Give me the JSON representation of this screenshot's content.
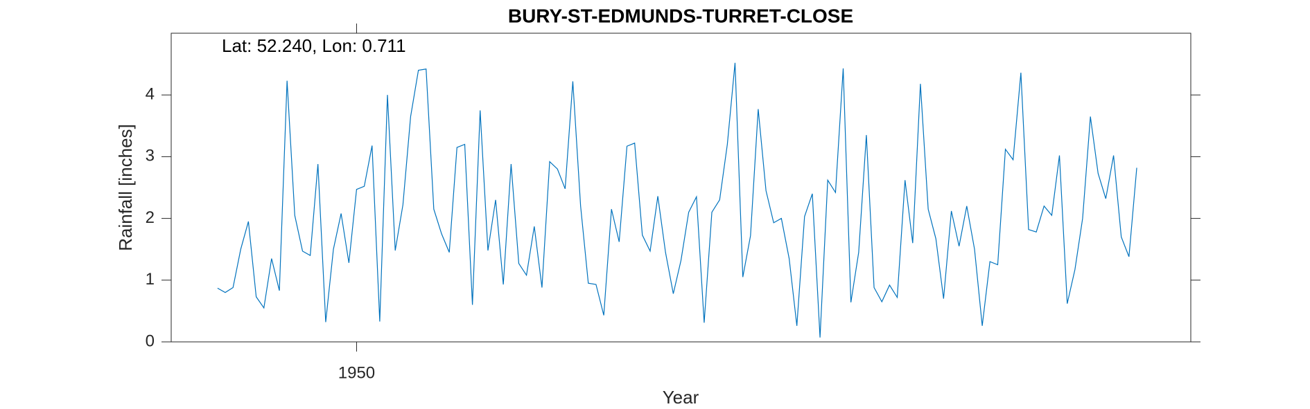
{
  "chart_data": {
    "type": "line",
    "title": "BURY-ST-EDMUNDS-TURRET-CLOSE",
    "annotation": "Lat: 52.240, Lon: 0.711",
    "x_label": "Year",
    "y_label": "Rainfall [inches]",
    "xlim": [
      1948,
      1959
    ],
    "xticks": [
      1950
    ],
    "ylim": [
      0,
      5
    ],
    "yticks": [
      0,
      1,
      2,
      3,
      4
    ],
    "grid": false,
    "x": [
      1948.5,
      1948.583,
      1948.667,
      1948.75,
      1948.833,
      1948.917,
      1949,
      1949.083,
      1949.167,
      1949.25,
      1949.333,
      1949.417,
      1949.5,
      1949.583,
      1949.667,
      1949.75,
      1949.833,
      1949.917,
      1950,
      1950.083,
      1950.167,
      1950.25,
      1950.333,
      1950.417,
      1950.5,
      1950.583,
      1950.667,
      1950.75,
      1950.833,
      1950.917,
      1951,
      1951.083,
      1951.167,
      1951.25,
      1951.333,
      1951.417,
      1951.5,
      1951.583,
      1951.667,
      1951.75,
      1951.833,
      1951.917,
      1952,
      1952.083,
      1952.167,
      1952.25,
      1952.333,
      1952.417,
      1952.5,
      1952.583,
      1952.667,
      1952.75,
      1952.833,
      1952.917,
      1953,
      1953.083,
      1953.167,
      1953.25,
      1953.333,
      1953.417,
      1953.5,
      1953.583,
      1953.667,
      1953.75,
      1953.833,
      1953.917,
      1954,
      1954.083,
      1954.167,
      1954.25,
      1954.333,
      1954.417,
      1954.5,
      1954.583,
      1954.667,
      1954.75,
      1954.833,
      1954.917,
      1955,
      1955.083,
      1955.167,
      1955.25,
      1955.333,
      1955.417,
      1955.5,
      1955.583,
      1955.667,
      1955.75,
      1955.833,
      1955.917,
      1956,
      1956.083,
      1956.167,
      1956.25,
      1956.333,
      1956.417,
      1956.5,
      1956.583,
      1956.667,
      1956.75,
      1956.833,
      1956.917,
      1957,
      1957.083,
      1957.167,
      1957.25,
      1957.333,
      1957.417,
      1957.5,
      1957.583,
      1957.667,
      1957.75,
      1957.833,
      1957.917,
      1958,
      1958.083,
      1958.167,
      1958.25,
      1958.333,
      1958.417
    ],
    "series": [
      {
        "color": "#0072bd",
        "values": [
          0.87,
          0.8,
          0.88,
          1.5,
          1.95,
          0.73,
          0.55,
          1.35,
          0.83,
          4.23,
          2.05,
          1.47,
          1.4,
          2.88,
          0.32,
          1.5,
          2.08,
          1.28,
          2.47,
          2.52,
          3.18,
          0.33,
          4.0,
          1.48,
          2.22,
          3.65,
          4.4,
          4.42,
          2.15,
          1.75,
          1.45,
          3.15,
          3.2,
          0.6,
          3.75,
          1.48,
          2.3,
          0.93,
          2.88,
          1.27,
          1.08,
          1.87,
          0.88,
          2.92,
          2.8,
          2.48,
          4.22,
          2.2,
          0.95,
          0.93,
          0.43,
          2.15,
          1.62,
          3.17,
          3.22,
          1.73,
          1.47,
          2.36,
          1.45,
          0.78,
          1.32,
          2.1,
          2.35,
          0.31,
          2.1,
          2.3,
          3.2,
          4.52,
          1.05,
          1.72,
          3.77,
          2.45,
          1.93,
          2.0,
          1.35,
          0.26,
          2.03,
          2.4,
          0.07,
          2.62,
          2.42,
          4.43,
          0.64,
          1.45,
          3.35,
          0.88,
          0.65,
          0.92,
          0.72,
          2.62,
          1.6,
          4.18,
          2.15,
          1.67,
          0.7,
          2.12,
          1.55,
          2.2,
          1.5,
          0.26,
          1.3,
          1.25,
          3.12,
          2.95,
          4.36,
          1.82,
          1.78,
          2.2,
          2.05,
          3.02,
          0.62,
          1.17,
          2.0,
          3.65,
          2.73,
          2.32,
          3.02,
          1.7,
          1.38,
          2.82
        ]
      }
    ]
  }
}
